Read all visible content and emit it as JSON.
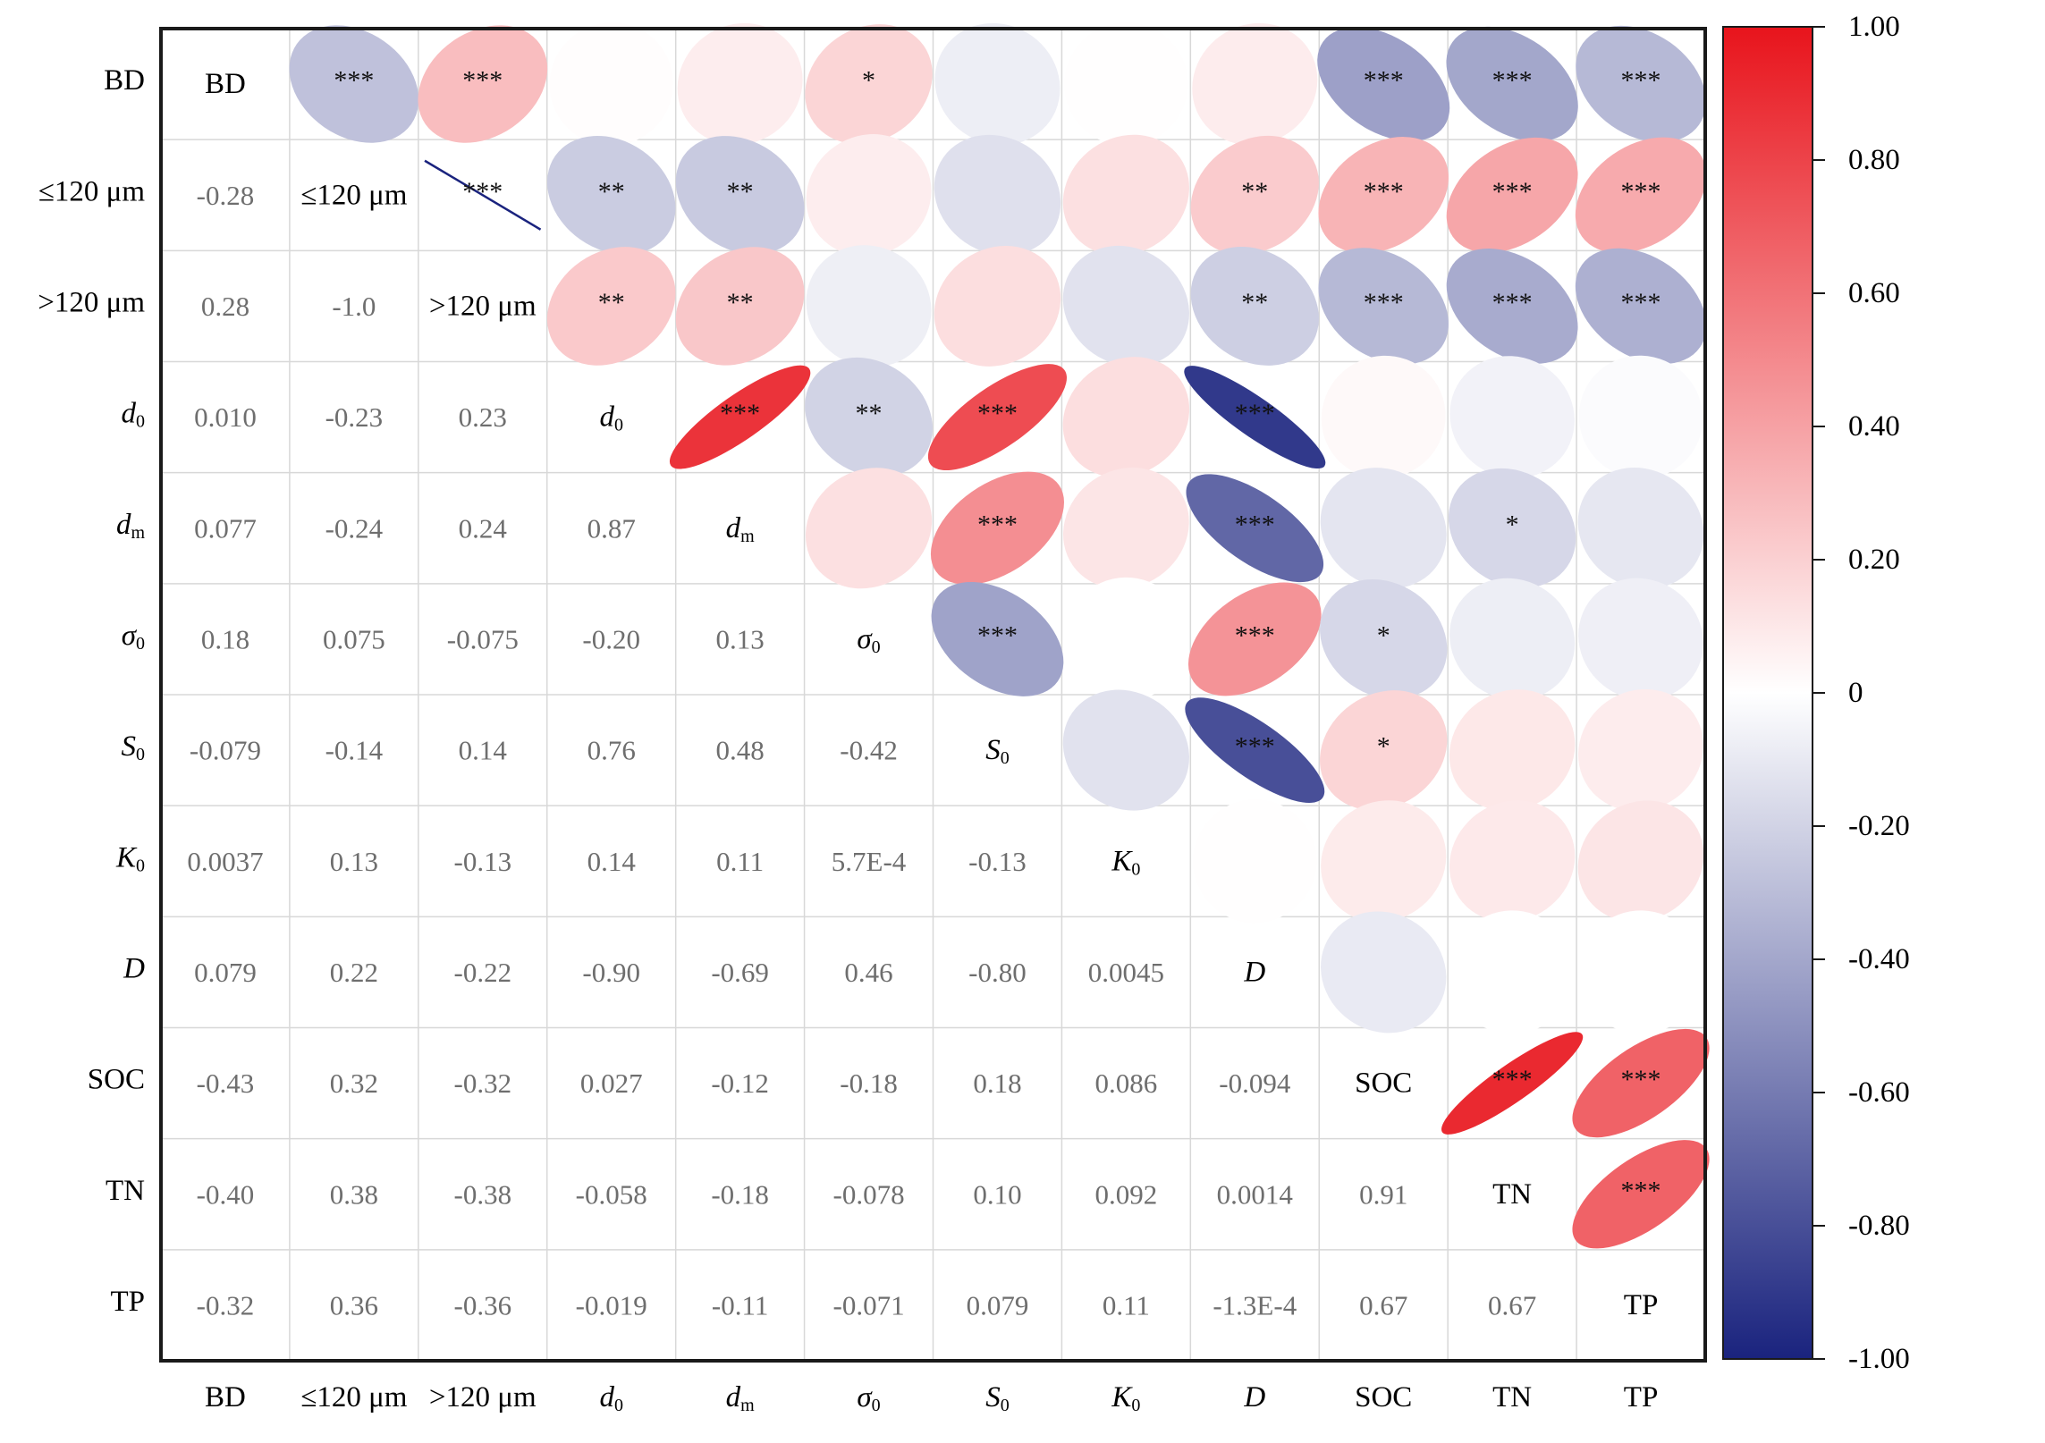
{
  "chart_data": {
    "type": "heatmap",
    "variables": [
      {
        "base": "BD",
        "sub": "",
        "italic": false
      },
      {
        "base": "≤120 μm",
        "sub": "",
        "italic": false
      },
      {
        "base": ">120 μm",
        "sub": "",
        "italic": false
      },
      {
        "base": "d",
        "sub": "0",
        "italic": true
      },
      {
        "base": "d",
        "sub": "m",
        "italic": true
      },
      {
        "base": "σ",
        "sub": "0",
        "italic": true
      },
      {
        "base": "S",
        "sub": "0",
        "italic": true
      },
      {
        "base": "K",
        "sub": "0",
        "italic": true
      },
      {
        "base": "D",
        "sub": "",
        "italic": true
      },
      {
        "base": "SOC",
        "sub": "",
        "italic": false
      },
      {
        "base": "TN",
        "sub": "",
        "italic": false
      },
      {
        "base": "TP",
        "sub": "",
        "italic": false
      }
    ],
    "lower_labels": [
      [],
      [
        "-0.28"
      ],
      [
        "0.28",
        "-1.0"
      ],
      [
        "0.010",
        "-0.23",
        "0.23"
      ],
      [
        "0.077",
        "-0.24",
        "0.24",
        "0.87"
      ],
      [
        "0.18",
        "0.075",
        "-0.075",
        "-0.20",
        "0.13"
      ],
      [
        "-0.079",
        "-0.14",
        "0.14",
        "0.76",
        "0.48",
        "-0.42"
      ],
      [
        "0.0037",
        "0.13",
        "-0.13",
        "0.14",
        "0.11",
        "5.7E-4",
        "-0.13"
      ],
      [
        "0.079",
        "0.22",
        "-0.22",
        "-0.90",
        "-0.69",
        "0.46",
        "-0.80",
        "0.0045"
      ],
      [
        "-0.43",
        "0.32",
        "-0.32",
        "0.027",
        "-0.12",
        "-0.18",
        "0.18",
        "0.086",
        "-0.094"
      ],
      [
        "-0.40",
        "0.38",
        "-0.38",
        "-0.058",
        "-0.18",
        "-0.078",
        "0.10",
        "0.092",
        "0.0014",
        "0.91"
      ],
      [
        "-0.32",
        "0.36",
        "-0.36",
        "-0.019",
        "-0.11",
        "-0.071",
        "0.079",
        "0.11",
        "-1.3E-4",
        "0.67",
        "0.67"
      ]
    ],
    "significance": [
      [
        "",
        "***",
        "***",
        "",
        "",
        "*",
        "",
        "",
        "",
        "***",
        "***",
        "***"
      ],
      [
        "",
        "",
        "***",
        "**",
        "**",
        "",
        "",
        "",
        "**",
        "***",
        "***",
        "***"
      ],
      [
        "",
        "",
        "",
        "**",
        "**",
        "",
        "",
        "",
        "**",
        "***",
        "***",
        "***"
      ],
      [
        "",
        "",
        "",
        "",
        "***",
        "**",
        "***",
        "",
        "***",
        "",
        "",
        ""
      ],
      [
        "",
        "",
        "",
        "",
        "",
        "",
        "***",
        "",
        "***",
        "",
        "*",
        ""
      ],
      [
        "",
        "",
        "",
        "",
        "",
        "",
        "***",
        "",
        "***",
        "*",
        "",
        ""
      ],
      [
        "",
        "",
        "",
        "",
        "",
        "",
        "",
        "",
        "***",
        "*",
        "",
        ""
      ],
      [
        "",
        "",
        "",
        "",
        "",
        "",
        "",
        "",
        "",
        "",
        "",
        ""
      ],
      [
        "",
        "",
        "",
        "",
        "",
        "",
        "",
        "",
        "",
        "",
        "",
        ""
      ],
      [
        "",
        "",
        "",
        "",
        "",
        "",
        "",
        "",
        "",
        "",
        "***",
        "***"
      ],
      [
        "",
        "",
        "",
        "",
        "",
        "",
        "",
        "",
        "",
        "",
        "",
        "***"
      ],
      [
        "",
        "",
        "",
        "",
        "",
        "",
        "",
        "",
        "",
        "",
        "",
        ""
      ]
    ],
    "colorbar": {
      "ticks": [
        "1.00",
        "0.80",
        "0.60",
        "0.40",
        "0.20",
        "0",
        "-0.20",
        "-0.40",
        "-0.60",
        "-0.80",
        "-1.00"
      ],
      "range": [
        -1,
        1
      ],
      "colors": {
        "negative": "#1a237e",
        "zero": "#ffffff",
        "positive": "#e8141c"
      }
    },
    "grid": true,
    "legend": "right"
  }
}
